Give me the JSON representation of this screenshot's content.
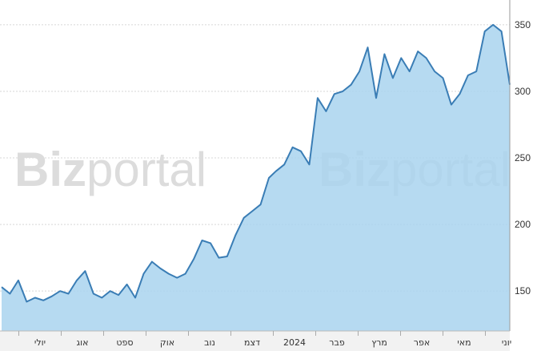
{
  "watermark": {
    "bold": "Biz",
    "light": "portal"
  },
  "colors": {
    "line": "#3a7db5",
    "area": "#a9d3ef",
    "grid": "#d7d7d7",
    "text": "#333333"
  },
  "chart_data": {
    "type": "area",
    "title": "",
    "xlabel": "",
    "ylabel": "",
    "ylim": [
      120,
      365
    ],
    "y_ticks": [
      150,
      200,
      250,
      300,
      350
    ],
    "y_axis_side": "right",
    "grid": true,
    "x_ticks": [
      "יולי",
      "אוג",
      "ספט",
      "אוק",
      "נוב",
      "דצמ",
      "2024",
      "פבר",
      "מרץ",
      "אפר",
      "מאי",
      "יוני"
    ],
    "series": [
      {
        "x": [
          "2023-06-19",
          "2023-06-25",
          "2023-07-01",
          "2023-07-07",
          "2023-07-13",
          "2023-07-19",
          "2023-07-25",
          "2023-07-31",
          "2023-08-06",
          "2023-08-12",
          "2023-08-18",
          "2023-08-24",
          "2023-08-30",
          "2023-09-05",
          "2023-09-11",
          "2023-09-17",
          "2023-09-23",
          "2023-09-29",
          "2023-10-05",
          "2023-10-11",
          "2023-10-17",
          "2023-10-23",
          "2023-10-29",
          "2023-11-04",
          "2023-11-10",
          "2023-11-16",
          "2023-11-22",
          "2023-11-28",
          "2023-12-04",
          "2023-12-10",
          "2023-12-16",
          "2023-12-22",
          "2023-12-28",
          "2024-01-02",
          "2024-01-08",
          "2024-01-14",
          "2024-01-20",
          "2024-01-26",
          "2024-02-01",
          "2024-02-07",
          "2024-02-13",
          "2024-02-19",
          "2024-02-25",
          "2024-03-02",
          "2024-03-08",
          "2024-03-14",
          "2024-03-20",
          "2024-03-26",
          "2024-04-01",
          "2024-04-07",
          "2024-04-13",
          "2024-04-19",
          "2024-04-25",
          "2024-05-01",
          "2024-05-07",
          "2024-05-13",
          "2024-05-19",
          "2024-05-25",
          "2024-05-31",
          "2024-06-06",
          "2024-06-12",
          "2024-06-18"
        ],
        "values": [
          153,
          148,
          158,
          142,
          145,
          143,
          146,
          150,
          148,
          158,
          165,
          148,
          145,
          150,
          147,
          155,
          145,
          163,
          172,
          167,
          163,
          160,
          163,
          174,
          188,
          186,
          175,
          176,
          192,
          205,
          210,
          215,
          235,
          240,
          245,
          258,
          255,
          245,
          295,
          285,
          298,
          300,
          305,
          315,
          333,
          295,
          328,
          310,
          325,
          315,
          330,
          325,
          315,
          310,
          290,
          298,
          312,
          315,
          345,
          350,
          345,
          305
        ]
      }
    ]
  }
}
